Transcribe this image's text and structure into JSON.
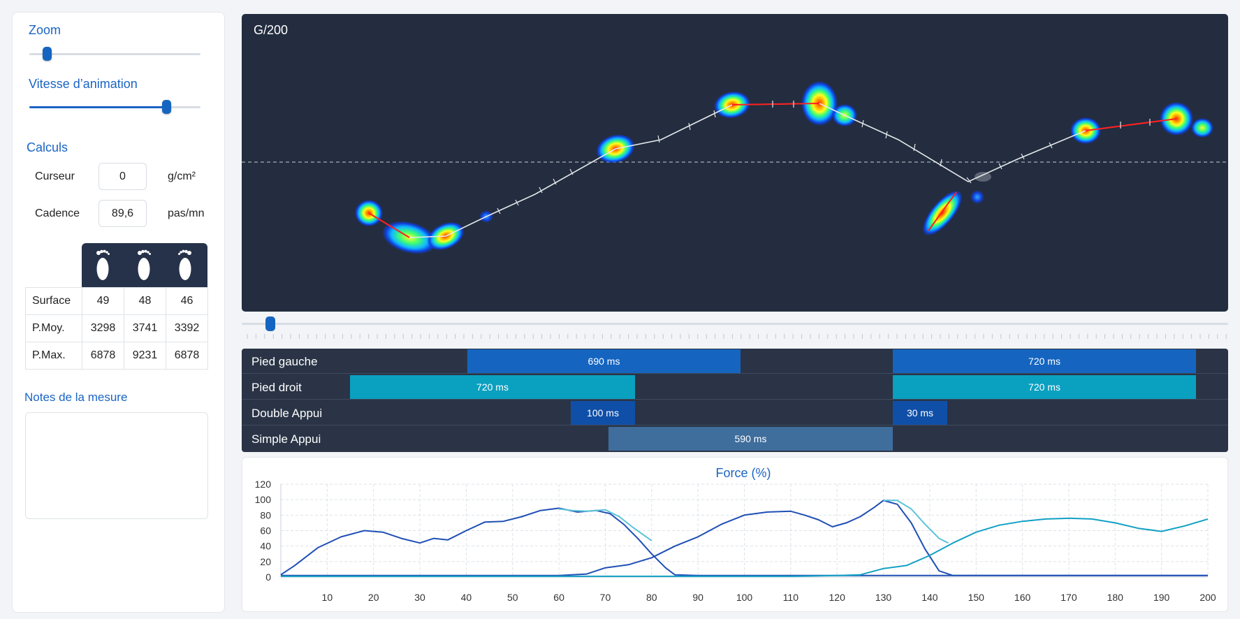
{
  "left": {
    "zoom_label": "Zoom",
    "zoom_level": 0.1,
    "speed_label": "Vitesse d’animation",
    "speed_level": 0.8,
    "calc_title": "Calculs",
    "cursor": {
      "label": "Curseur",
      "value": "0",
      "unit": "g/cm²"
    },
    "cadence": {
      "label": "Cadence",
      "value": "89,6",
      "unit": "pas/mn"
    },
    "feet_icons": [
      "foot-left-icon",
      "foot-center-icon",
      "foot-right-icon"
    ],
    "stats": [
      {
        "label": "Surface",
        "values": [
          "49",
          "48",
          "46"
        ]
      },
      {
        "label": "P.Moy.",
        "values": [
          "3298",
          "3741",
          "3392"
        ]
      },
      {
        "label": "P.Max.",
        "values": [
          "6878",
          "9231",
          "6878"
        ]
      }
    ],
    "notes_title": "Notes de la mesure",
    "notes_value": ""
  },
  "map": {
    "title": "G/200",
    "background": "#232d3f"
  },
  "timeline": {
    "position": 0.02
  },
  "phases": [
    {
      "label": "Pied gauche",
      "color": "#1565c0",
      "bars": [
        {
          "text": "690 ms"
        },
        {
          "text": "720 ms"
        }
      ]
    },
    {
      "label": "Pied droit",
      "color": "#0aa0c0",
      "bars": [
        {
          "text": "720 ms"
        },
        {
          "text": "720 ms"
        }
      ]
    },
    {
      "label": "Double Appui",
      "color": "#0f4fa8",
      "bars": [
        {
          "text": "100 ms"
        },
        {
          "text": "30 ms"
        }
      ]
    },
    {
      "label": "Simple Appui",
      "color": "#3f6d9c",
      "bars": [
        {
          "text": "590 ms"
        }
      ]
    }
  ],
  "chart_data": {
    "type": "line",
    "title": "Force (%)",
    "xlabel": "",
    "ylabel": "",
    "xlim": [
      0,
      200
    ],
    "ylim": [
      0,
      120
    ],
    "x_ticks": [
      10,
      20,
      30,
      40,
      50,
      60,
      70,
      80,
      90,
      100,
      110,
      120,
      130,
      140,
      150,
      160,
      170,
      180,
      190,
      200
    ],
    "y_ticks": [
      0,
      20,
      40,
      60,
      80,
      100,
      120
    ],
    "grid": true,
    "legend": "none",
    "series": [
      {
        "color": "#1f4fb5",
        "x": [
          0,
          3,
          8,
          13,
          18,
          22,
          26,
          30,
          33,
          36,
          40,
          44,
          48,
          52,
          56,
          60,
          64,
          68,
          71,
          74,
          77,
          80,
          83,
          85,
          90,
          100,
          110,
          130,
          150,
          170,
          200
        ],
        "y": [
          3,
          15,
          38,
          52,
          60,
          58,
          50,
          44,
          50,
          48,
          60,
          71,
          72,
          78,
          86,
          89,
          84,
          86,
          82,
          68,
          50,
          30,
          12,
          3,
          2,
          2,
          2,
          2,
          2,
          2,
          2
        ]
      },
      {
        "color": "#5cc3d8",
        "x": [
          60,
          63,
          66,
          70,
          73,
          76,
          80
        ],
        "y": [
          88,
          86,
          85,
          87,
          78,
          64,
          47
        ]
      },
      {
        "color": "#1f4fb5",
        "x": [
          0,
          60,
          66,
          70,
          75,
          80,
          85,
          90,
          95,
          100,
          105,
          110,
          113,
          116,
          119,
          122,
          125,
          128,
          130,
          133,
          136,
          139,
          142,
          145,
          150,
          170,
          200
        ],
        "y": [
          2,
          2,
          4,
          12,
          16,
          25,
          40,
          52,
          68,
          80,
          84,
          85,
          80,
          74,
          65,
          70,
          78,
          90,
          99,
          94,
          70,
          36,
          8,
          2,
          2,
          2,
          2
        ]
      },
      {
        "color": "#12a0c5",
        "x": [
          0,
          60,
          70,
          80,
          90,
          100,
          110,
          120,
          125,
          130,
          135,
          140,
          145,
          150,
          155,
          160,
          165,
          170,
          175,
          180,
          185,
          190,
          195,
          200
        ],
        "y": [
          1,
          1,
          1,
          1,
          1,
          1,
          1,
          2,
          3,
          11,
          15,
          28,
          44,
          58,
          67,
          72,
          75,
          76,
          75,
          70,
          63,
          59,
          66,
          75
        ]
      },
      {
        "color": "#5cc3d8",
        "x": [
          130,
          133,
          136,
          139,
          142,
          144
        ],
        "y": [
          99,
          99,
          88,
          68,
          50,
          44
        ]
      }
    ]
  }
}
